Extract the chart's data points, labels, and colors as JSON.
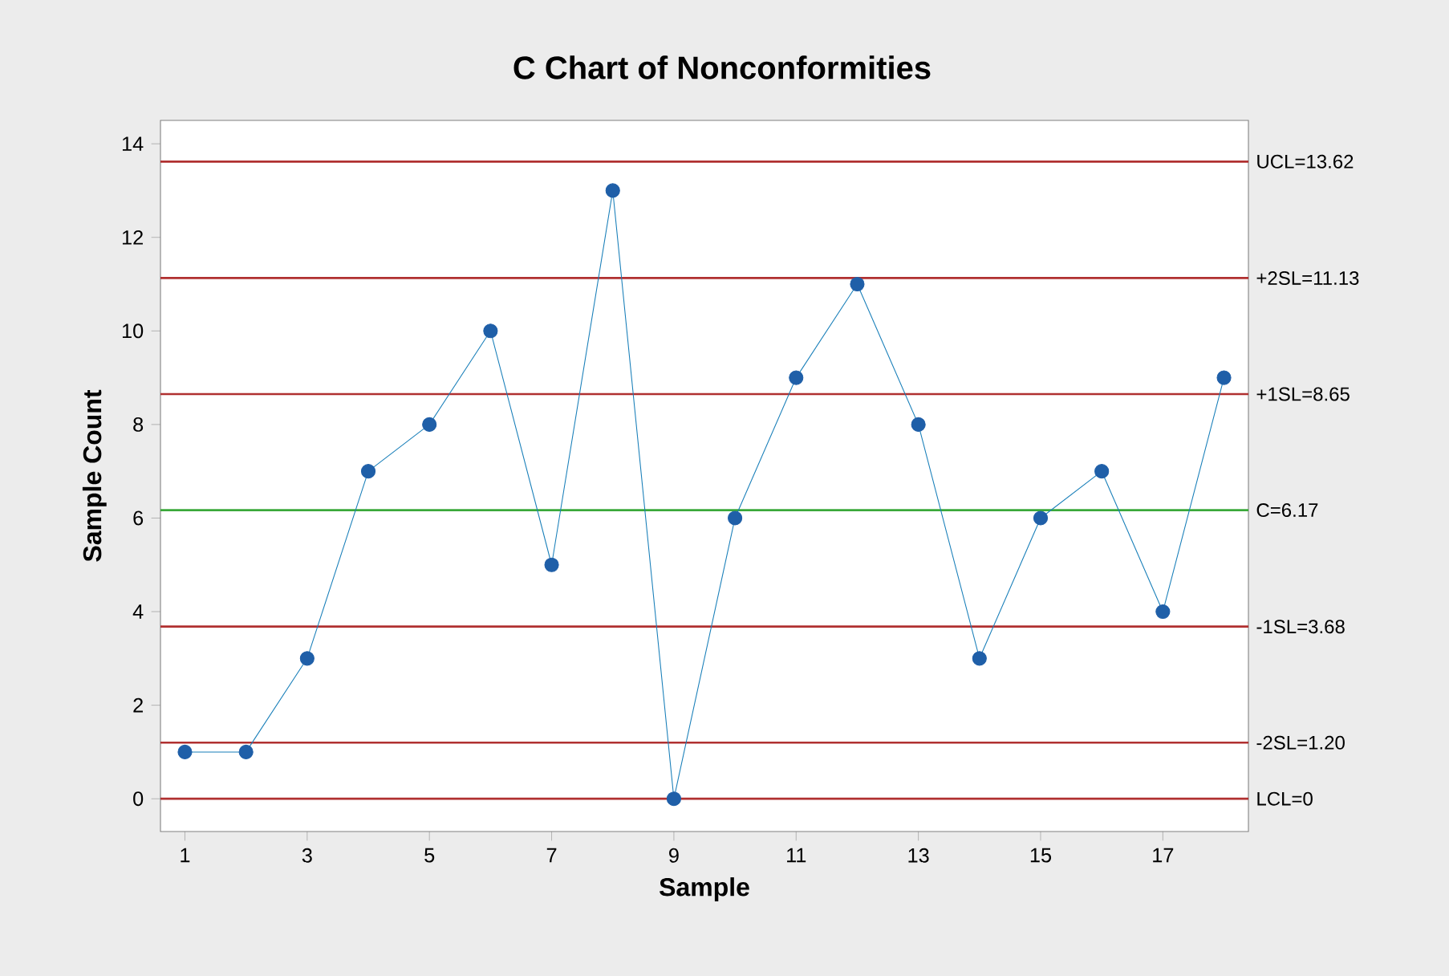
{
  "chart_data": {
    "type": "line",
    "title": "C Chart of Nonconformities",
    "xlabel": "Sample",
    "ylabel": "Sample Count",
    "x": [
      1,
      2,
      3,
      4,
      5,
      6,
      7,
      8,
      9,
      10,
      11,
      12,
      13,
      14,
      15,
      16,
      17,
      18
    ],
    "series": [
      {
        "color": "#1f5fa8",
        "values": [
          1,
          1,
          3,
          7,
          8,
          10,
          5,
          13,
          0,
          6,
          9,
          11,
          8,
          3,
          6,
          7,
          4,
          9
        ]
      }
    ],
    "xlim": [
      0.6,
      18.4
    ],
    "xticks": [
      1,
      3,
      5,
      7,
      9,
      11,
      13,
      15,
      17
    ],
    "ylim": [
      -0.7,
      14.5
    ],
    "yticks": [
      0,
      2,
      4,
      6,
      8,
      10,
      12,
      14
    ],
    "marker": "circle",
    "line_style": "solid",
    "ref_lines": [
      {
        "axis": "y",
        "value": 13.62,
        "label": "UCL=13.62",
        "color": "#b03030"
      },
      {
        "axis": "y",
        "value": 11.13,
        "label": "+2SL=11.13",
        "color": "#b03030"
      },
      {
        "axis": "y",
        "value": 8.65,
        "label": "+1SL=8.65",
        "color": "#b03030"
      },
      {
        "axis": "y",
        "value": 6.17,
        "label": "C=6.17",
        "color": "#3aa83a"
      },
      {
        "axis": "y",
        "value": 3.68,
        "label": "-1SL=3.68",
        "color": "#b03030"
      },
      {
        "axis": "y",
        "value": 1.2,
        "label": "-2SL=1.20",
        "color": "#b03030"
      },
      {
        "axis": "y",
        "value": 0,
        "label": "LCL=0",
        "color": "#b03030"
      }
    ]
  }
}
